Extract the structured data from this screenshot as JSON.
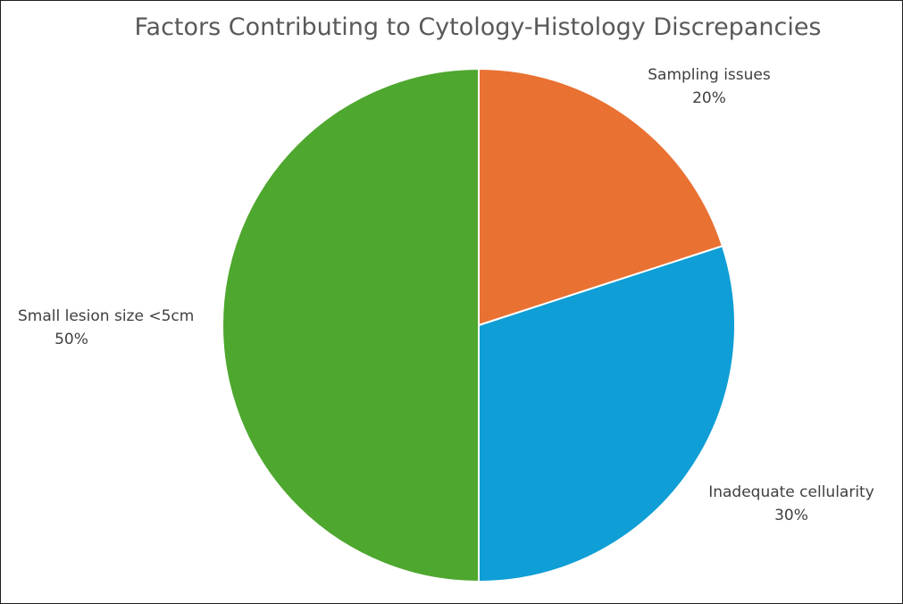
{
  "chart_data": {
    "type": "pie",
    "title": "Factors Contributing to Cytology-Histology Discrepancies",
    "categories": [
      "Sampling issues",
      "Inadequate cellularity",
      "Small lesion size <5cm"
    ],
    "values": [
      20,
      30,
      50
    ],
    "value_labels": [
      "20%",
      "30%",
      "50%"
    ],
    "colors": [
      "#e97132",
      "#0f9ed5",
      "#4ea72e"
    ],
    "start_angle": "12 o'clock",
    "direction": "clockwise",
    "legend": "none"
  }
}
